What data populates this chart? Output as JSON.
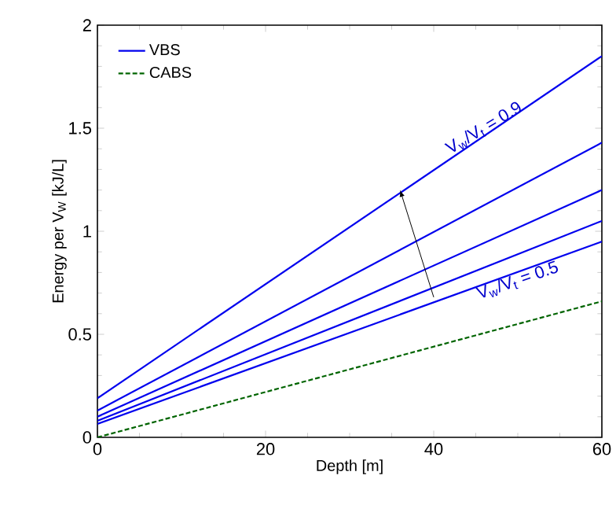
{
  "chart_data": {
    "type": "line",
    "xlabel": "Depth [m]",
    "ylabel": "Energy per V$_{W}$ [kJ/L]",
    "x": [
      0,
      60
    ],
    "xlim": [
      0,
      60
    ],
    "ylim": [
      0,
      2
    ],
    "xticks": [
      0,
      20,
      40,
      60
    ],
    "yticks": [
      0,
      {
        "value": 0.5,
        "label": "0.5"
      },
      1,
      {
        "value": 1.5,
        "label": "1.5"
      },
      2
    ],
    "legend": "top left",
    "grid": false,
    "series": [
      {
        "name": "VBS",
        "color": "#0000ee",
        "line_style": "solid",
        "values": [
          0.19,
          1.85
        ]
      },
      {
        "color": "#0000ee",
        "line_style": "solid",
        "values": [
          0.13,
          1.43
        ]
      },
      {
        "color": "#0000ee",
        "line_style": "solid",
        "values": [
          0.1,
          1.2
        ]
      },
      {
        "color": "#0000ee",
        "line_style": "solid",
        "values": [
          0.08,
          1.05
        ]
      },
      {
        "color": "#0000ee",
        "line_style": "solid",
        "values": [
          0.065,
          0.95
        ]
      },
      {
        "name": "CABS",
        "color": "#006400",
        "line_style": "dashed",
        "values": [
          0,
          0.66
        ]
      }
    ],
    "annotations": [
      {
        "text": "V$_{w}$/V$_{t}$ = 0.9",
        "x": 46,
        "y": 1.5
      },
      {
        "text": "V$_{w}$/V$_{t}$ = 0.5",
        "x": 50,
        "y": 0.76
      }
    ]
  }
}
